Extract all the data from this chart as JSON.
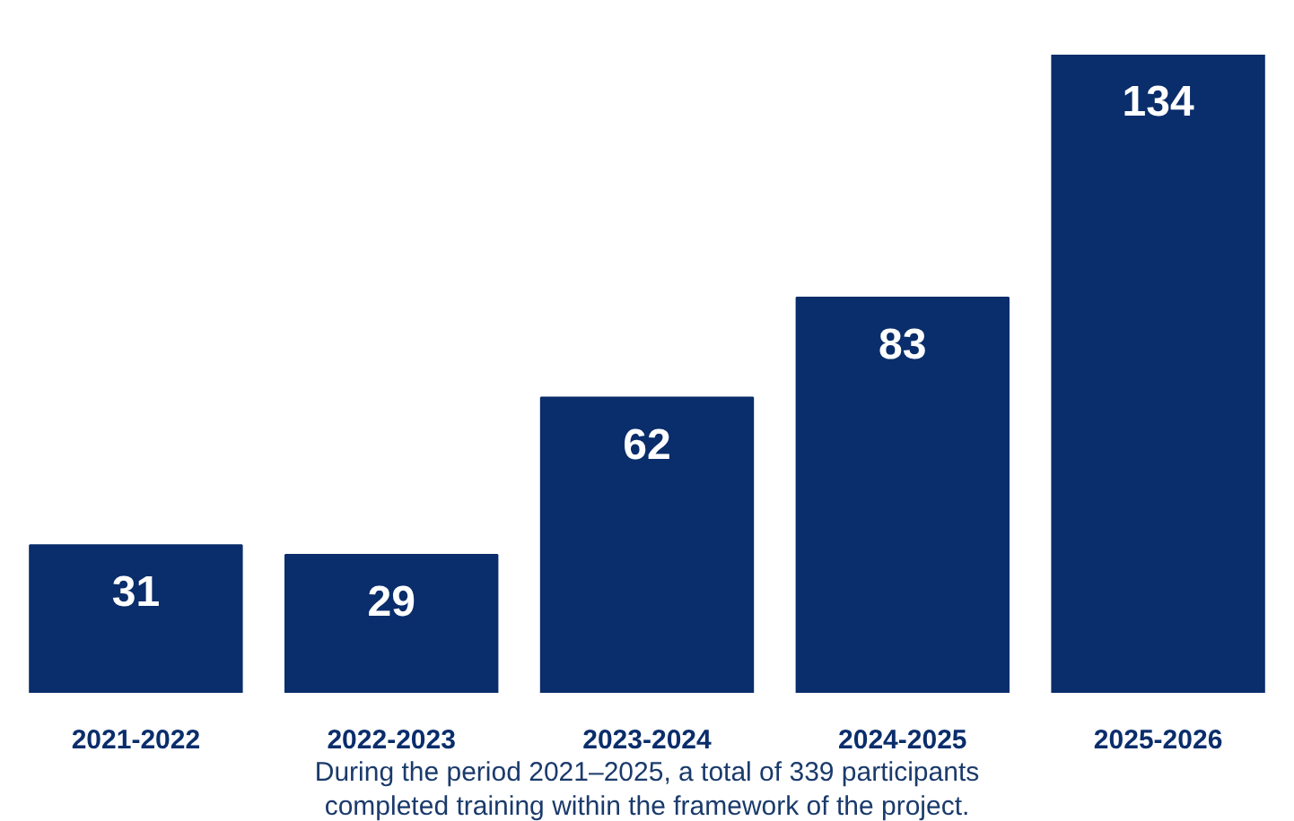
{
  "chart_data": {
    "type": "bar",
    "categories": [
      "2021-2022",
      "2022-2023",
      "2023-2024",
      "2024-2025",
      "2025-2026"
    ],
    "values": [
      31,
      29,
      62,
      83,
      134
    ],
    "color": "#0a2d6b",
    "data_labels": true,
    "annotations": [
      "During the period 2021–2025, a total of 339 participants completed training within the framework of the project."
    ]
  }
}
